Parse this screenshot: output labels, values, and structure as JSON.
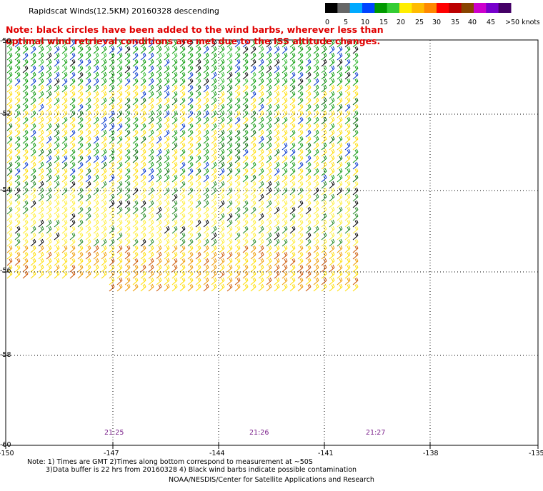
{
  "title": "Rapidscat Winds(12.5KM) 20160328 descending",
  "note": "Note: black circles have been added to the wind barbs, wherever less than optimal wind retrieval conditions are met due to the ISS altitude changes.",
  "legend": {
    "labels": [
      "0",
      "5",
      "10",
      "15",
      "20",
      "25",
      "30",
      "35",
      "40",
      "45",
      ">50 knots"
    ],
    "colors": [
      "#000000",
      "#666666",
      "#00aaff",
      "#0044ff",
      "#009900",
      "#33cc33",
      "#ffee00",
      "#ffbb00",
      "#ff8800",
      "#ff0000",
      "#bb0000",
      "#884400",
      "#cc00cc",
      "#7700cc",
      "#440066"
    ]
  },
  "latitudes": [
    "-50",
    "-52",
    "-54",
    "-56",
    "-58",
    "-60"
  ],
  "longitudes": [
    "-150",
    "-147",
    "-144",
    "-141",
    "-138",
    "-135"
  ],
  "times": [
    "21:25",
    "21:26",
    "21:27"
  ],
  "footer": {
    "line1": "Note: 1) Times are GMT 2)Times along bottom correspond to measurement at ~50S",
    "line2": "3)Data buffer is 22 hrs from 20160328 4) Black wind barbs indicate possible contamination",
    "line3": "NOAA/NESDIS/Center for Satellite Applications and Research"
  }
}
